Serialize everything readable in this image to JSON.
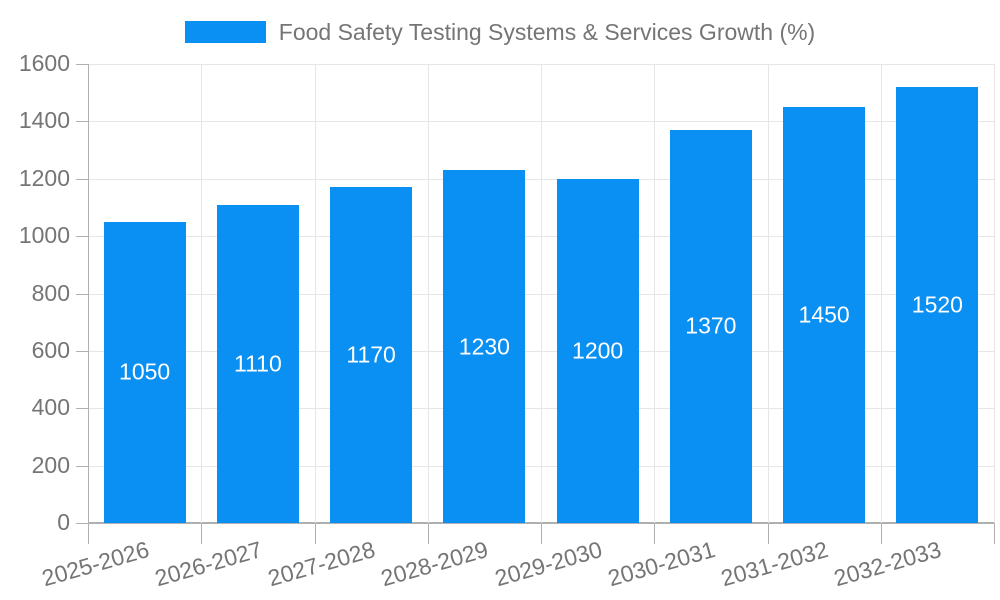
{
  "legend": {
    "label": "Food Safety Testing Systems & Services Growth (%)"
  },
  "chart_data": {
    "type": "bar",
    "title": "Food Safety Testing Systems & Services Growth (%)",
    "categories": [
      "2025-2026",
      "2026-2027",
      "2027-2028",
      "2028-2029",
      "2029-2030",
      "2030-2031",
      "2031-2032",
      "2032-2033"
    ],
    "values": [
      1050,
      1110,
      1170,
      1230,
      1200,
      1370,
      1450,
      1520
    ],
    "value_labels": [
      "1050",
      "1110",
      "1170",
      "1230",
      "1200",
      "1370",
      "1450",
      "1520"
    ],
    "xlabel": "",
    "ylabel": "",
    "ylim": [
      0,
      1600
    ],
    "ytick_step": 200,
    "ytick_labels": [
      "0",
      "200",
      "400",
      "600",
      "800",
      "1000",
      "1200",
      "1400",
      "1600"
    ],
    "grid": true,
    "legend_position": "top-center",
    "value_label_position": "middle-of-bar"
  },
  "colors": {
    "bar": "#0a8ff2",
    "grid_line": "#e6e6e6",
    "axis_line": "#b0b0b0",
    "tick_label": "#757575",
    "legend_text": "#757575",
    "value_label": "#ffffff",
    "background": "#ffffff"
  }
}
